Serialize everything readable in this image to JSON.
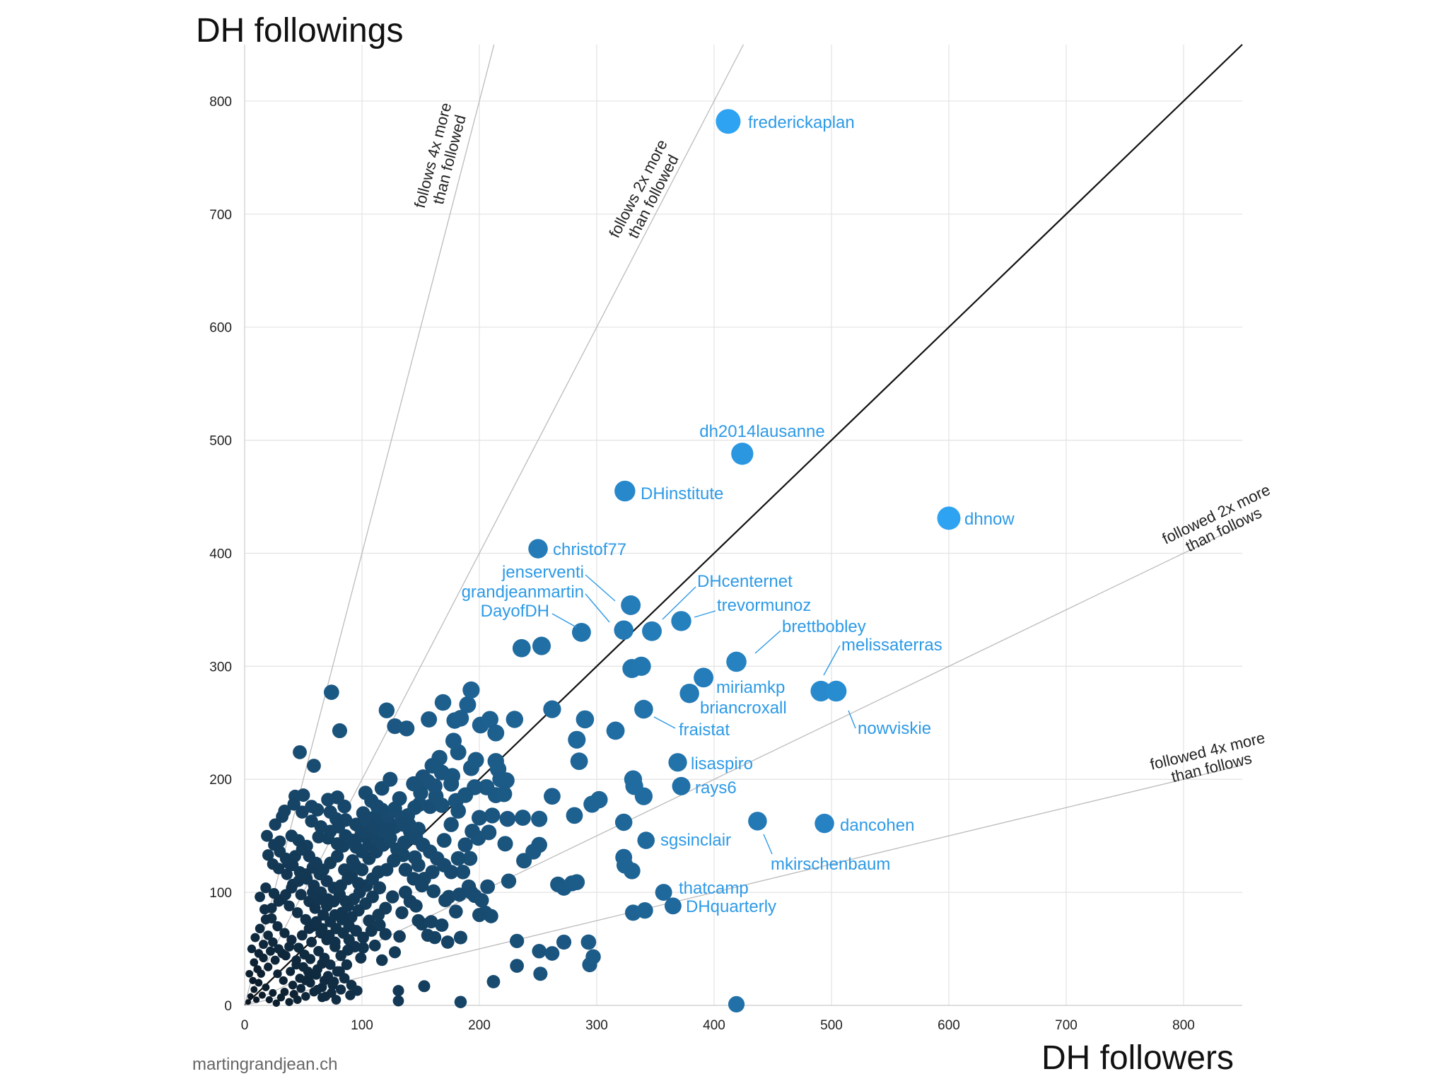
{
  "credit": "martingrandjean.ch",
  "chart_data": {
    "type": "scatter",
    "xlabel": "DH followers",
    "ylabel": "DH followings",
    "xlim": [
      0,
      850
    ],
    "ylim": [
      0,
      850
    ],
    "xticks": [
      0,
      100,
      200,
      300,
      400,
      500,
      600,
      700,
      800
    ],
    "yticks": [
      0,
      100,
      200,
      300,
      400,
      500,
      600,
      700,
      800
    ],
    "grid": true,
    "reference_lines": [
      {
        "slope": 4,
        "label_lines": [
          "follows 4x more",
          "than followed"
        ],
        "color": "#bbbbbb"
      },
      {
        "slope": 2,
        "label_lines": [
          "follows 2x more",
          "than followed"
        ],
        "color": "#bbbbbb"
      },
      {
        "slope": 1,
        "label_lines": [],
        "color": "#111111"
      },
      {
        "slope": 0.5,
        "label_lines": [
          "followed 2x more",
          "than follows"
        ],
        "color": "#bbbbbb"
      },
      {
        "slope": 0.25,
        "label_lines": [
          "followed 4x more",
          "than follows"
        ],
        "color": "#bbbbbb"
      }
    ],
    "color_scale": [
      "#0a1520",
      "#2ea3f2"
    ],
    "labeled_points": [
      {
        "name": "frederickaplan",
        "x": 412,
        "y": 782
      },
      {
        "name": "dh2014lausanne",
        "x": 424,
        "y": 488
      },
      {
        "name": "DHinstitute",
        "x": 324,
        "y": 455
      },
      {
        "name": "dhnow",
        "x": 600,
        "y": 431
      },
      {
        "name": "christof77",
        "x": 250,
        "y": 404
      },
      {
        "name": "jenserventi",
        "x": 329,
        "y": 354
      },
      {
        "name": "grandjeanmartin",
        "x": 323,
        "y": 332
      },
      {
        "name": "DayofDH",
        "x": 287,
        "y": 330
      },
      {
        "name": "DHcenternet",
        "x": 347,
        "y": 331
      },
      {
        "name": "trevormunoz",
        "x": 372,
        "y": 340
      },
      {
        "name": "brettbobley",
        "x": 419,
        "y": 304
      },
      {
        "name": "melissaterras",
        "x": 491,
        "y": 278
      },
      {
        "name": "nowviskie",
        "x": 504,
        "y": 278
      },
      {
        "name": "miriamkp",
        "x": 391,
        "y": 290
      },
      {
        "name": "briancroxall",
        "x": 379,
        "y": 276
      },
      {
        "name": "fraistat",
        "x": 340,
        "y": 262
      },
      {
        "name": "lisaspiro",
        "x": 369,
        "y": 215
      },
      {
        "name": "rays6",
        "x": 372,
        "y": 194
      },
      {
        "name": "dancohen",
        "x": 494,
        "y": 161
      },
      {
        "name": "mkirschenbaum",
        "x": 437,
        "y": 163
      },
      {
        "name": "sgsinclair",
        "x": 342,
        "y": 146
      },
      {
        "name": "thatcamp",
        "x": 357,
        "y": 100
      },
      {
        "name": "DHquarterly",
        "x": 365,
        "y": 88
      }
    ],
    "other_points": [
      [
        74,
        277
      ],
      [
        81,
        243
      ],
      [
        47,
        224
      ],
      [
        59,
        212
      ],
      [
        121,
        261
      ],
      [
        128,
        247
      ],
      [
        138,
        245
      ],
      [
        157,
        253
      ],
      [
        169,
        268
      ],
      [
        179,
        252
      ],
      [
        190,
        266
      ],
      [
        193,
        279
      ],
      [
        184,
        254
      ],
      [
        201,
        248
      ],
      [
        209,
        253
      ],
      [
        214,
        241
      ],
      [
        230,
        253
      ],
      [
        236,
        316
      ],
      [
        253,
        318
      ],
      [
        262,
        262
      ],
      [
        290,
        253
      ],
      [
        283,
        235
      ],
      [
        285,
        216
      ],
      [
        316,
        243
      ],
      [
        330,
        298
      ],
      [
        338,
        300
      ],
      [
        331,
        200
      ],
      [
        332,
        194
      ],
      [
        340,
        185
      ],
      [
        302,
        182
      ],
      [
        296,
        178
      ],
      [
        281,
        168
      ],
      [
        262,
        185
      ],
      [
        251,
        165
      ],
      [
        323,
        162
      ],
      [
        323,
        131
      ],
      [
        324,
        124
      ],
      [
        330,
        119
      ],
      [
        238,
        128
      ],
      [
        246,
        136
      ],
      [
        251,
        142
      ],
      [
        237,
        166
      ],
      [
        222,
        143
      ],
      [
        224,
        165
      ],
      [
        211,
        168
      ],
      [
        214,
        186
      ],
      [
        206,
        193
      ],
      [
        196,
        193
      ],
      [
        214,
        216
      ],
      [
        216,
        209
      ],
      [
        218,
        200
      ],
      [
        223,
        199
      ],
      [
        221,
        187
      ],
      [
        208,
        153
      ],
      [
        199,
        148
      ],
      [
        192,
        130
      ],
      [
        186,
        118
      ],
      [
        191,
        105
      ],
      [
        196,
        97
      ],
      [
        202,
        93
      ],
      [
        205,
        82
      ],
      [
        210,
        79
      ],
      [
        225,
        110
      ],
      [
        207,
        105
      ],
      [
        193,
        100
      ],
      [
        174,
        96
      ],
      [
        171,
        93
      ],
      [
        180,
        83
      ],
      [
        183,
        98
      ],
      [
        200,
        80
      ],
      [
        158,
        176
      ],
      [
        163,
        185
      ],
      [
        156,
        198
      ],
      [
        149,
        178
      ],
      [
        168,
        177
      ],
      [
        180,
        181
      ],
      [
        177,
        203
      ],
      [
        182,
        224
      ],
      [
        193,
        210
      ],
      [
        197,
        217
      ],
      [
        178,
        234
      ],
      [
        166,
        219
      ],
      [
        162,
        194
      ],
      [
        145,
        175
      ],
      [
        132,
        183
      ],
      [
        128,
        158
      ],
      [
        122,
        145
      ],
      [
        135,
        133
      ],
      [
        141,
        154
      ],
      [
        145,
        131
      ],
      [
        148,
        124
      ],
      [
        160,
        118
      ],
      [
        153,
        112
      ],
      [
        161,
        101
      ],
      [
        137,
        100
      ],
      [
        134,
        82
      ],
      [
        148,
        75
      ],
      [
        151,
        72
      ],
      [
        159,
        74
      ],
      [
        162,
        60
      ],
      [
        173,
        56
      ],
      [
        184,
        60
      ],
      [
        156,
        62
      ],
      [
        168,
        71
      ],
      [
        132,
        61
      ],
      [
        120,
        63
      ],
      [
        115,
        71
      ],
      [
        106,
        75
      ],
      [
        111,
        53
      ],
      [
        128,
        47
      ],
      [
        117,
        40
      ],
      [
        101,
        51
      ],
      [
        99,
        42
      ],
      [
        87,
        36
      ],
      [
        81,
        30
      ],
      [
        71,
        26
      ],
      [
        66,
        37
      ],
      [
        56,
        41
      ],
      [
        62,
        32
      ],
      [
        55,
        26
      ],
      [
        76,
        21
      ],
      [
        52,
        22
      ],
      [
        48,
        15
      ],
      [
        42,
        10
      ],
      [
        66,
        7
      ],
      [
        78,
        5
      ],
      [
        131,
        13
      ],
      [
        131,
        4
      ],
      [
        153,
        17
      ],
      [
        184,
        3
      ],
      [
        212,
        21
      ],
      [
        232,
        57
      ],
      [
        232,
        35
      ],
      [
        251,
        48
      ],
      [
        252,
        28
      ],
      [
        262,
        46
      ],
      [
        272,
        56
      ],
      [
        293,
        56
      ],
      [
        294,
        36
      ],
      [
        297,
        43
      ],
      [
        267,
        107
      ],
      [
        272,
        104
      ],
      [
        279,
        108
      ],
      [
        283,
        109
      ],
      [
        331,
        82
      ],
      [
        341,
        84
      ],
      [
        419,
        1
      ],
      [
        92,
        128
      ],
      [
        99,
        150
      ],
      [
        95,
        160
      ],
      [
        86,
        164
      ],
      [
        78,
        165
      ],
      [
        73,
        171
      ],
      [
        79,
        184
      ],
      [
        85,
        176
      ],
      [
        103,
        188
      ],
      [
        108,
        181
      ],
      [
        117,
        173
      ],
      [
        110,
        166
      ],
      [
        104,
        152
      ],
      [
        95,
        140
      ],
      [
        84,
        141
      ],
      [
        79,
        143
      ],
      [
        71,
        148
      ],
      [
        63,
        149
      ],
      [
        53,
        141
      ],
      [
        46,
        146
      ],
      [
        40,
        150
      ],
      [
        57,
        163
      ],
      [
        62,
        173
      ],
      [
        71,
        182
      ],
      [
        49,
        171
      ],
      [
        43,
        185
      ],
      [
        32,
        167
      ],
      [
        30,
        145
      ],
      [
        20,
        133
      ],
      [
        24,
        125
      ],
      [
        29,
        121
      ],
      [
        36,
        116
      ],
      [
        41,
        107
      ],
      [
        48,
        98
      ],
      [
        55,
        92
      ],
      [
        60,
        86
      ],
      [
        67,
        80
      ],
      [
        73,
        74
      ],
      [
        78,
        68
      ],
      [
        84,
        64
      ],
      [
        89,
        58
      ],
      [
        94,
        52
      ],
      [
        88,
        49
      ],
      [
        82,
        44
      ],
      [
        77,
        52
      ],
      [
        70,
        58
      ],
      [
        65,
        64
      ],
      [
        58,
        70
      ],
      [
        52,
        76
      ],
      [
        45,
        82
      ],
      [
        38,
        88
      ],
      [
        32,
        94
      ],
      [
        25,
        99
      ],
      [
        18,
        104
      ],
      [
        13,
        96
      ],
      [
        17,
        85
      ],
      [
        23,
        77
      ],
      [
        28,
        70
      ],
      [
        34,
        64
      ],
      [
        40,
        58
      ],
      [
        46,
        51
      ],
      [
        51,
        45
      ],
      [
        57,
        56
      ],
      [
        63,
        48
      ],
      [
        68,
        42
      ],
      [
        73,
        36
      ],
      [
        79,
        30
      ],
      [
        85,
        24
      ],
      [
        91,
        18
      ],
      [
        96,
        13
      ],
      [
        90,
        9
      ],
      [
        82,
        14
      ],
      [
        74,
        11
      ],
      [
        66,
        16
      ],
      [
        59,
        12
      ],
      [
        52,
        8
      ],
      [
        45,
        5
      ],
      [
        38,
        3
      ],
      [
        31,
        7
      ],
      [
        24,
        11
      ],
      [
        18,
        16
      ],
      [
        12,
        20
      ],
      [
        8,
        14
      ],
      [
        5,
        8
      ],
      [
        3,
        3
      ],
      [
        10,
        5
      ],
      [
        15,
        9
      ],
      [
        21,
        5
      ],
      [
        27,
        2
      ],
      [
        34,
        12
      ],
      [
        41,
        18
      ],
      [
        47,
        24
      ],
      [
        54,
        30
      ],
      [
        61,
        27
      ],
      [
        68,
        22
      ],
      [
        75,
        18
      ],
      [
        14,
        28
      ],
      [
        20,
        34
      ],
      [
        26,
        40
      ],
      [
        32,
        46
      ],
      [
        38,
        52
      ],
      [
        44,
        40
      ],
      [
        50,
        34
      ],
      [
        56,
        20
      ],
      [
        62,
        14
      ],
      [
        69,
        8
      ],
      [
        8,
        38
      ],
      [
        12,
        46
      ],
      [
        16,
        54
      ],
      [
        20,
        62
      ],
      [
        24,
        56
      ],
      [
        29,
        50
      ],
      [
        35,
        44
      ],
      [
        9,
        60
      ],
      [
        13,
        68
      ],
      [
        18,
        76
      ],
      [
        6,
        50
      ],
      [
        4,
        28
      ],
      [
        7,
        22
      ],
      [
        11,
        32
      ],
      [
        16,
        42
      ],
      [
        22,
        48
      ],
      [
        28,
        28
      ],
      [
        33,
        22
      ],
      [
        39,
        30
      ],
      [
        44,
        36
      ],
      [
        49,
        62
      ],
      [
        55,
        68
      ],
      [
        61,
        74
      ],
      [
        66,
        68
      ],
      [
        72,
        62
      ],
      [
        77,
        56
      ],
      [
        83,
        82
      ],
      [
        88,
        88
      ],
      [
        93,
        94
      ],
      [
        98,
        100
      ],
      [
        104,
        106
      ],
      [
        109,
        112
      ],
      [
        114,
        118
      ],
      [
        100,
        120
      ],
      [
        106,
        130
      ],
      [
        112,
        136
      ],
      [
        118,
        142
      ],
      [
        124,
        148
      ],
      [
        130,
        138
      ],
      [
        136,
        144
      ],
      [
        142,
        150
      ],
      [
        148,
        156
      ],
      [
        139,
        168
      ],
      [
        127,
        128
      ],
      [
        121,
        120
      ],
      [
        115,
        104
      ],
      [
        109,
        96
      ],
      [
        103,
        90
      ],
      [
        97,
        84
      ],
      [
        91,
        78
      ],
      [
        86,
        92
      ],
      [
        81,
        98
      ],
      [
        76,
        104
      ],
      [
        70,
        110
      ],
      [
        64,
        116
      ],
      [
        58,
        122
      ],
      [
        52,
        116
      ],
      [
        46,
        110
      ],
      [
        40,
        104
      ],
      [
        35,
        98
      ],
      [
        29,
        92
      ],
      [
        23,
        86
      ],
      [
        37,
        126
      ],
      [
        43,
        132
      ],
      [
        49,
        138
      ],
      [
        55,
        132
      ],
      [
        61,
        126
      ],
      [
        67,
        120
      ],
      [
        73,
        126
      ],
      [
        79,
        132
      ],
      [
        85,
        120
      ],
      [
        91,
        114
      ],
      [
        97,
        108
      ],
      [
        58,
        100
      ],
      [
        64,
        94
      ],
      [
        70,
        88
      ],
      [
        76,
        92
      ],
      [
        82,
        106
      ],
      [
        88,
        112
      ],
      [
        94,
        124
      ],
      [
        100,
        136
      ],
      [
        106,
        142
      ],
      [
        112,
        148
      ],
      [
        118,
        154
      ],
      [
        124,
        160
      ],
      [
        117,
        192
      ],
      [
        124,
        200
      ],
      [
        113,
        176
      ],
      [
        101,
        170
      ],
      [
        137,
        120
      ],
      [
        144,
        112
      ],
      [
        151,
        106
      ],
      [
        141,
        92
      ],
      [
        146,
        88
      ],
      [
        126,
        96
      ],
      [
        120,
        86
      ],
      [
        114,
        80
      ],
      [
        108,
        66
      ],
      [
        101,
        60
      ],
      [
        95,
        66
      ],
      [
        89,
        70
      ],
      [
        83,
        76
      ],
      [
        77,
        80
      ],
      [
        71,
        94
      ],
      [
        65,
        100
      ],
      [
        59,
        106
      ],
      [
        53,
        112
      ],
      [
        47,
        118
      ],
      [
        41,
        124
      ],
      [
        35,
        130
      ],
      [
        30,
        136
      ],
      [
        25,
        142
      ],
      [
        19,
        150
      ],
      [
        26,
        160
      ],
      [
        34,
        172
      ],
      [
        42,
        178
      ],
      [
        50,
        186
      ],
      [
        57,
        176
      ],
      [
        65,
        158
      ],
      [
        73,
        154
      ],
      [
        80,
        158
      ],
      [
        86,
        150
      ],
      [
        92,
        146
      ],
      [
        98,
        158
      ],
      [
        104,
        164
      ],
      [
        110,
        158
      ],
      [
        116,
        164
      ],
      [
        122,
        168
      ],
      [
        128,
        174
      ],
      [
        134,
        166
      ],
      [
        140,
        160
      ],
      [
        146,
        148
      ],
      [
        152,
        142
      ],
      [
        158,
        136
      ],
      [
        164,
        130
      ],
      [
        170,
        124
      ],
      [
        176,
        118
      ],
      [
        182,
        130
      ],
      [
        188,
        142
      ],
      [
        194,
        154
      ],
      [
        200,
        166
      ],
      [
        170,
        146
      ],
      [
        176,
        160
      ],
      [
        182,
        172
      ],
      [
        188,
        186
      ],
      [
        176,
        196
      ],
      [
        168,
        206
      ],
      [
        160,
        212
      ],
      [
        152,
        202
      ],
      [
        150,
        188
      ],
      [
        144,
        196
      ],
      [
        135,
        160
      ]
    ]
  }
}
